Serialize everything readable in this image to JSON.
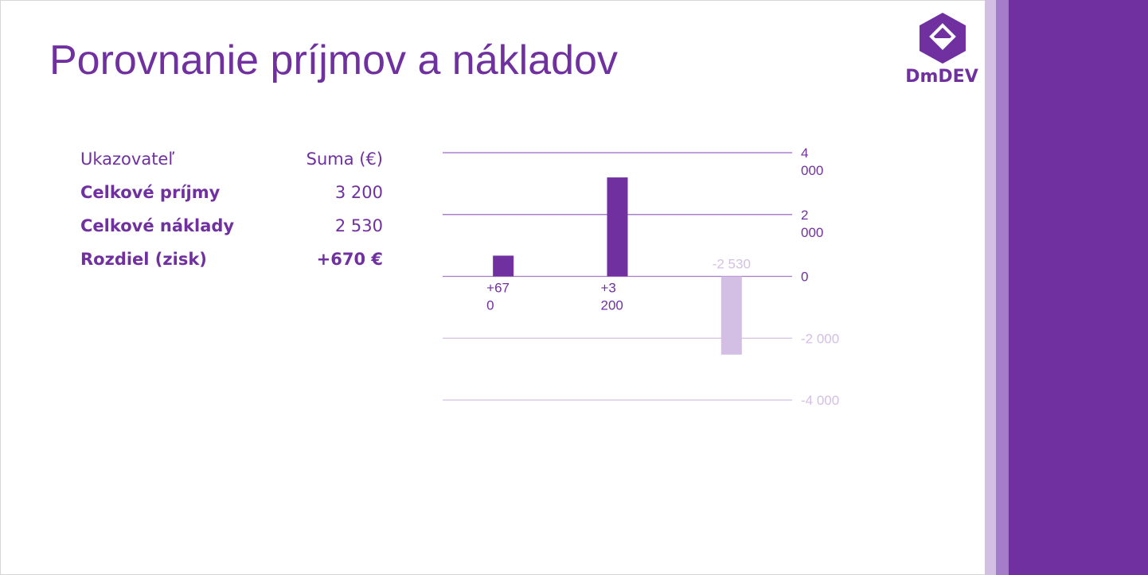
{
  "slide": {
    "title": "Porovnanie príjmov a nákladov"
  },
  "logo": {
    "text": "DmDEV"
  },
  "table": {
    "header": {
      "label": "Ukazovateľ",
      "value": "Suma (€)"
    },
    "rows": [
      {
        "label": "Celkové príjmy",
        "value": "3 200"
      },
      {
        "label": "Celkové náklady",
        "value": "2 530"
      },
      {
        "label": "Rozdiel (zisk)",
        "value": "+670 €"
      }
    ]
  },
  "colors": {
    "accent": "#7030a0",
    "light": "#d4bfe4",
    "mid": "#a57cc9"
  },
  "chart_data": {
    "type": "bar",
    "categories": [
      "",
      "",
      ""
    ],
    "values": [
      670,
      3200,
      -2530
    ],
    "data_labels": [
      "+670",
      "+3 200",
      "-2 530"
    ],
    "bar_colors": [
      "#7030a0",
      "#7030a0",
      "#d4bfe4"
    ],
    "ylim": [
      -4000,
      4000
    ],
    "yticks": [
      4000,
      2000,
      0,
      -2000,
      -4000
    ],
    "ytick_labels": [
      "4 000",
      "2 000",
      "0",
      "-2 000",
      "-4 000"
    ],
    "grid": true,
    "title": "",
    "xlabel": "",
    "ylabel": ""
  }
}
